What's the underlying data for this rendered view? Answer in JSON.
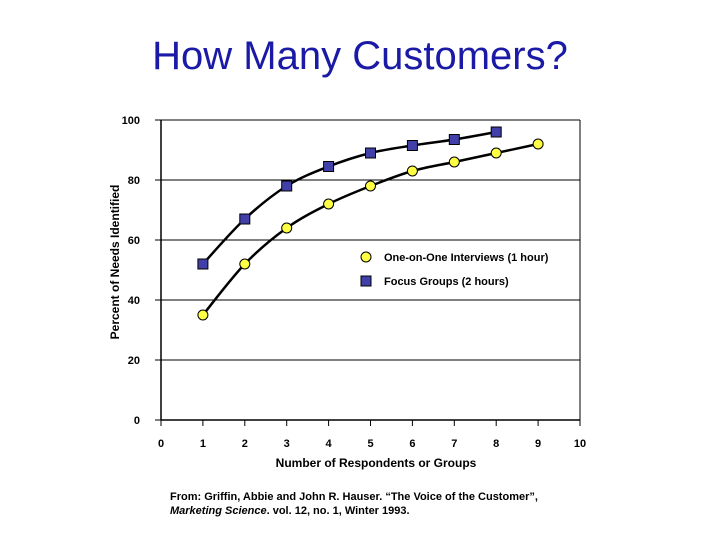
{
  "slide": {
    "title": "How Many Customers?"
  },
  "source": {
    "prefix": "From: Griffin, Abbie and John R. Hauser. “The Voice of the Customer”,",
    "journal": "Marketing Science",
    "suffix": ". vol. 12, no. 1, Winter 1993."
  },
  "chart_data": {
    "type": "line",
    "title": "",
    "xlabel": "Number of Respondents or Groups",
    "ylabel": "Percent of Needs Identified",
    "xlim": [
      0,
      10
    ],
    "ylim": [
      0,
      100
    ],
    "x_ticks": [
      0,
      1,
      2,
      3,
      4,
      5,
      6,
      7,
      8,
      9,
      10
    ],
    "y_ticks": [
      0,
      20,
      40,
      60,
      80,
      100
    ],
    "grid": "horizontal",
    "legend_position": "center-right",
    "series": [
      {
        "name": "One-on-One Interviews (1 hour)",
        "marker": "circle",
        "color": "#ffff44",
        "x": [
          1,
          2,
          3,
          4,
          5,
          6,
          7,
          8,
          9
        ],
        "values": [
          35,
          52,
          64,
          72,
          78,
          83,
          86,
          89,
          92
        ]
      },
      {
        "name": "Focus Groups (2 hours)",
        "marker": "square",
        "color": "#4040a8",
        "x": [
          1,
          2,
          3,
          4,
          5,
          6,
          7,
          8
        ],
        "values": [
          52,
          67,
          78,
          84.5,
          89,
          91.5,
          93.5,
          96
        ]
      }
    ]
  }
}
